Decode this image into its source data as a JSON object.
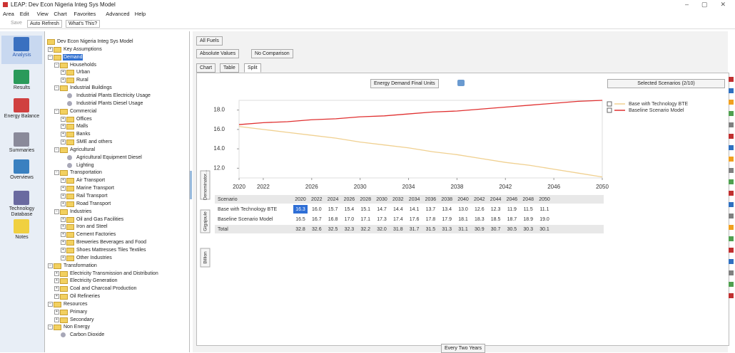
{
  "window_title": "LEAP: Dev Econ Nigeria Integ Sys Model",
  "menu": [
    "Area",
    "Edit",
    "View",
    "Chart",
    "Favorites",
    "Advanced",
    "Help"
  ],
  "toolbar": [
    "Save",
    "Auto Refresh",
    "What's This?"
  ],
  "sidebar": [
    "Analysis",
    "Results",
    "Energy Balance",
    "Summaries",
    "Overviews",
    "Technology Database",
    "Notes"
  ],
  "tree": {
    "label": "Dev Econ Nigeria Integ Sys Model",
    "children": [
      {
        "label": "Key Assumptions",
        "children": []
      },
      {
        "label": "Demand",
        "selected": true,
        "children": [
          {
            "label": "Households",
            "children": [
              {
                "label": "Urban",
                "children": []
              },
              {
                "label": "Rural",
                "children": []
              }
            ]
          },
          {
            "label": "Industrial Buildings",
            "children": [
              {
                "label": "Industrial Plants Electricity Usage"
              },
              {
                "label": "Industrial Plants Diesel Usage"
              }
            ]
          },
          {
            "label": "Commercial",
            "children": [
              {
                "label": "Offices",
                "children": []
              },
              {
                "label": "Malls",
                "children": []
              },
              {
                "label": "Banks",
                "children": []
              },
              {
                "label": "SME and others",
                "children": []
              }
            ]
          },
          {
            "label": "Agricultural",
            "children": [
              {
                "label": "Agricultural Equipment Diesel"
              },
              {
                "label": "Lighting"
              }
            ]
          },
          {
            "label": "Transportation",
            "children": [
              {
                "label": "Air Transport",
                "children": []
              },
              {
                "label": "Marine Transport",
                "children": []
              },
              {
                "label": "Rail Transport",
                "children": []
              },
              {
                "label": "Road Transport",
                "children": []
              }
            ]
          },
          {
            "label": "Industries",
            "children": [
              {
                "label": "Oil and Gas Facilities",
                "children": []
              },
              {
                "label": "Iron and Steel",
                "children": []
              },
              {
                "label": "Cement Factories",
                "children": []
              },
              {
                "label": "Breweries Beverages and Food",
                "children": []
              },
              {
                "label": "Shoes Mattresses Tiles Textiles",
                "children": []
              },
              {
                "label": "Other Industries",
                "children": []
              }
            ]
          }
        ]
      },
      {
        "label": "Transformation",
        "children": [
          {
            "label": "Electricity Transmission and Distribution",
            "children": []
          },
          {
            "label": "Electricity Generation",
            "children": []
          },
          {
            "label": "Coal and Charcoal Production",
            "children": []
          },
          {
            "label": "Oil Refineries",
            "children": []
          }
        ]
      },
      {
        "label": "Resources",
        "children": [
          {
            "label": "Primary",
            "children": []
          },
          {
            "label": "Secondary",
            "children": []
          }
        ]
      },
      {
        "label": "Non Energy",
        "children": [
          {
            "label": "Carbon Dioxide"
          }
        ]
      }
    ]
  },
  "controls": {
    "fuel": "All Fuels",
    "values": "Absolute Values",
    "comparison": "No Comparison",
    "tabs": [
      "Chart",
      "Table",
      "Split"
    ],
    "units": "Energy Demand Final Units",
    "scenarios": "Selected Scenarios (2/10)",
    "side_tabs": [
      "Denominator...",
      "Gigajoule",
      "Billion"
    ],
    "interval": "Every Two Years"
  },
  "chart_data": {
    "type": "line",
    "x": [
      2020,
      2022,
      2024,
      2026,
      2028,
      2030,
      2032,
      2034,
      2036,
      2038,
      2040,
      2042,
      2044,
      2046,
      2048,
      2050
    ],
    "xlim": [
      2020,
      2050
    ],
    "xticks": [
      2020,
      2022,
      2026,
      2030,
      2034,
      2038,
      2042,
      2046,
      2050
    ],
    "ylim": [
      11,
      19
    ],
    "yticks": [
      {
        "value": 12,
        "label": "12.0"
      },
      {
        "value": 14,
        "label": "14.0"
      },
      {
        "value": 16,
        "label": "16.0"
      },
      {
        "value": 18,
        "label": "18.0"
      }
    ],
    "grid": false,
    "legend": "right",
    "series": [
      {
        "name": "Base with Technology BTE",
        "color": "#f0d090",
        "values": [
          16.3,
          16.0,
          15.7,
          15.4,
          15.1,
          14.7,
          14.4,
          14.1,
          13.7,
          13.4,
          13.0,
          12.6,
          12.3,
          11.9,
          11.5,
          11.1
        ],
        "value_labels": [
          "16.3",
          "16.0",
          "15.7",
          "15.4",
          "15.1",
          "14.7",
          "14.4",
          "14.1",
          "13.7",
          "13.4",
          "13.0",
          "12.6",
          "12.3",
          "11.9",
          "11.5",
          "11.1"
        ]
      },
      {
        "name": "Baseline Scenario Model",
        "color": "#e03030",
        "values": [
          16.5,
          16.7,
          16.8,
          17.0,
          17.1,
          17.3,
          17.4,
          17.6,
          17.8,
          17.9,
          18.1,
          18.3,
          18.5,
          18.7,
          18.9,
          19.0
        ],
        "value_labels": [
          "16.5",
          "16.7",
          "16.8",
          "17.0",
          "17.1",
          "17.3",
          "17.4",
          "17.6",
          "17.8",
          "17.9",
          "18.1",
          "18.3",
          "18.5",
          "18.7",
          "18.9",
          "19.0"
        ]
      }
    ]
  },
  "table": {
    "header": "Scenario",
    "total_label": "Total",
    "total": [
      "32.8",
      "32.6",
      "32.5",
      "32.3",
      "32.2",
      "32.0",
      "31.8",
      "31.7",
      "31.5",
      "31.3",
      "31.1",
      "30.9",
      "30.7",
      "30.5",
      "30.3",
      "30.1"
    ]
  }
}
